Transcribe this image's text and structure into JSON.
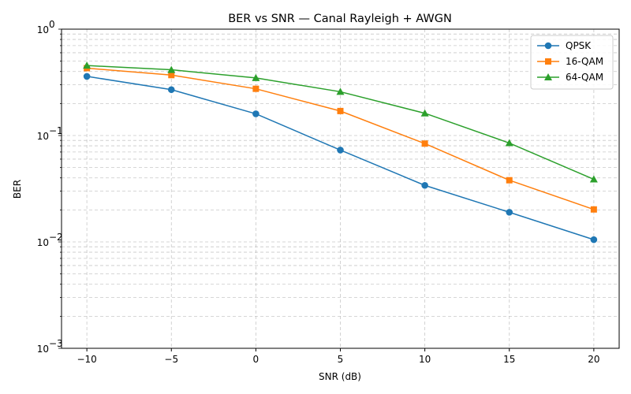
{
  "chart_data": {
    "type": "line",
    "title": "BER vs SNR — Canal Rayleigh + AWGN",
    "xlabel": "SNR (dB)",
    "ylabel": "BER",
    "yscale": "log",
    "xlim": [
      -11.5,
      21.5
    ],
    "ylim": [
      0.001,
      1
    ],
    "grid": true,
    "legend_position": "top-right",
    "x": [
      -10,
      -5,
      0,
      5,
      10,
      15,
      20
    ],
    "x_ticks": [
      -10,
      -5,
      0,
      5,
      10,
      15,
      20
    ],
    "x_tick_labels": [
      "−10",
      "−5",
      "0",
      "5",
      "10",
      "15",
      "20"
    ],
    "y_ticks": [
      0.001,
      0.01,
      0.1,
      1
    ],
    "y_tick_labels": [
      [
        "10",
        "−3"
      ],
      [
        "10",
        "−2"
      ],
      [
        "10",
        "−1"
      ],
      [
        "10",
        "0"
      ]
    ],
    "series": [
      {
        "name": "QPSK",
        "color": "#1f77b4",
        "marker": "circle",
        "values": [
          0.36,
          0.27,
          0.16,
          0.073,
          0.034,
          0.019,
          0.0105
        ]
      },
      {
        "name": "16-QAM",
        "color": "#ff7f0e",
        "marker": "square",
        "values": [
          0.43,
          0.37,
          0.275,
          0.17,
          0.084,
          0.038,
          0.0202
        ]
      },
      {
        "name": "64-QAM",
        "color": "#2ca02c",
        "marker": "triangle",
        "values": [
          0.455,
          0.415,
          0.348,
          0.258,
          0.162,
          0.085,
          0.0388
        ]
      }
    ]
  }
}
